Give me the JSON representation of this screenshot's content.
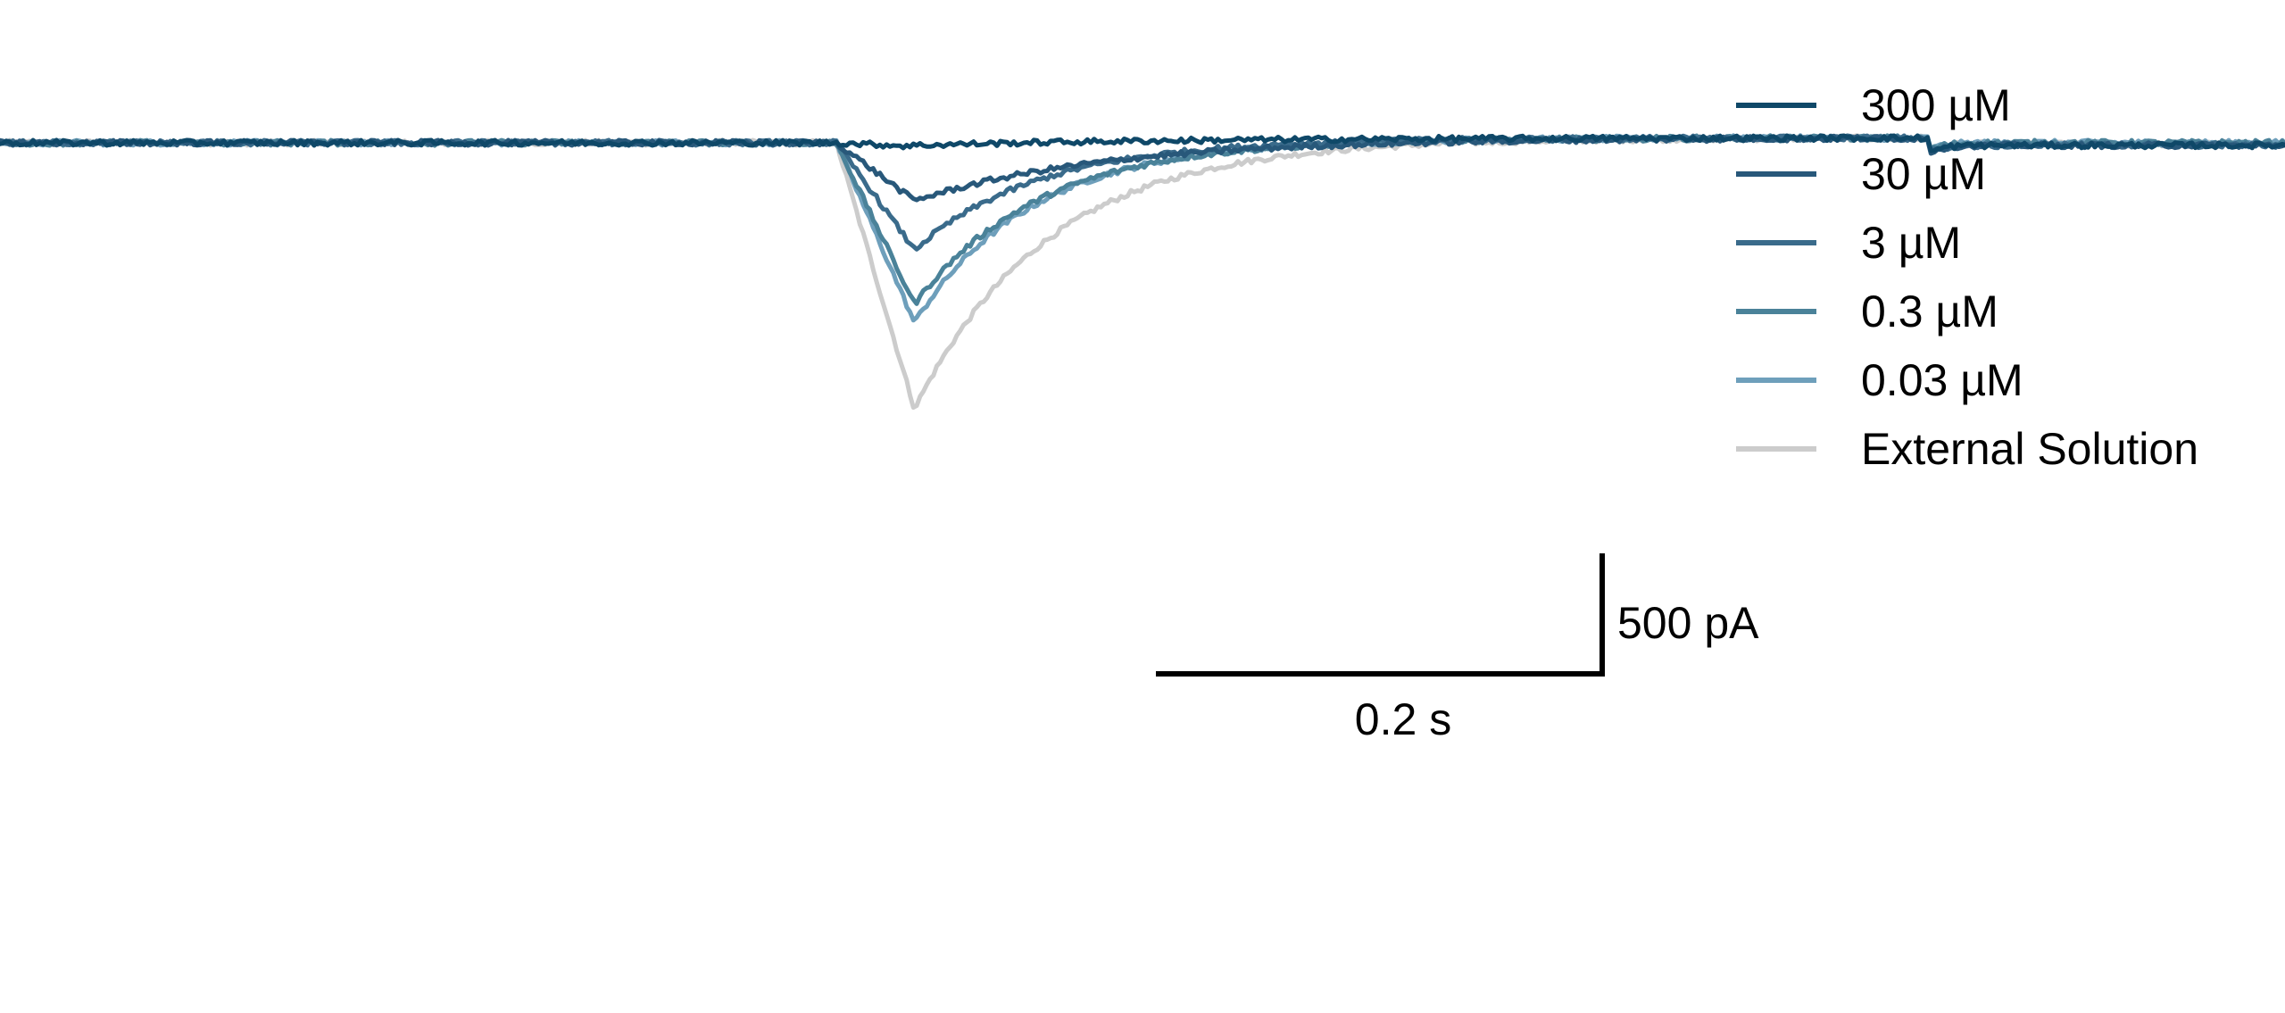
{
  "chart_data": {
    "type": "line",
    "title": "",
    "xlabel": "",
    "ylabel": "",
    "xlim": [
      -0.38,
      0.88
    ],
    "ylim": [
      -1080,
      80
    ],
    "grid": false,
    "axes_visible": false,
    "legend_position": "top-right",
    "scale_bars": {
      "time": {
        "value": 0.2,
        "label": "0.2 s"
      },
      "current": {
        "value": 500,
        "label": "500 pA"
      }
    },
    "series": [
      {
        "name": "300 µM",
        "color": "#0f4868",
        "peak_pA": -12,
        "peak_time_s": 0.03,
        "tau_s": 0.1,
        "offset_pA": -10
      },
      {
        "name": "30 µM",
        "color": "#28587a",
        "peak_pA": -235,
        "peak_time_s": 0.035,
        "tau_s": 0.085,
        "offset_pA": -10
      },
      {
        "name": "3 µM",
        "color": "#3a6b8b",
        "peak_pA": -435,
        "peak_time_s": 0.035,
        "tau_s": 0.055,
        "offset_pA": -10
      },
      {
        "name": "0.3 µM",
        "color": "#4a8299",
        "peak_pA": -655,
        "peak_time_s": 0.035,
        "tau_s": 0.055,
        "offset_pA": 0
      },
      {
        "name": "0.03 µM",
        "color": "#6e9fbb",
        "peak_pA": -730,
        "peak_time_s": 0.035,
        "tau_s": 0.052,
        "offset_pA": 0
      },
      {
        "name": "External Solution",
        "color": "#cccccc",
        "peak_pA": -1080,
        "peak_time_s": 0.035,
        "tau_s": 0.06,
        "offset_pA": -5
      }
    ]
  }
}
